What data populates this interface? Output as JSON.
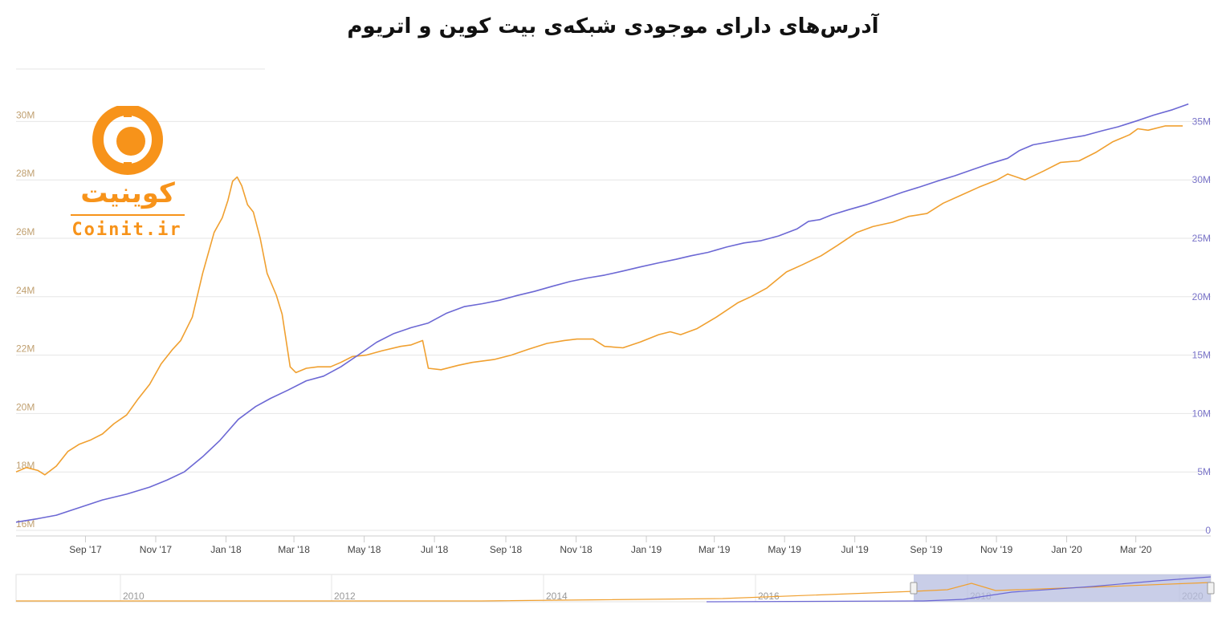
{
  "title": "آدرس‌های دارای موجودی شبکه‌ی بیت کوین و اتریوم",
  "logo": {
    "text_en": "Coinit.ir",
    "text_fa": "کوینیت",
    "color": "#f7931a"
  },
  "colors": {
    "bitcoin": "#f0a030",
    "ethereum": "#6c68d4",
    "grid": "#e6e6e6",
    "navigator_mask": "#b7bde0"
  },
  "chart_data": {
    "type": "line",
    "title": "آدرس‌های دارای موجودی شبکه‌ی بیت کوین و اتریوم",
    "x_ticks": [
      "Sep '17",
      "Nov '17",
      "Jan '18",
      "Mar '18",
      "May '18",
      "Jul '18",
      "Sep '18",
      "Nov '18",
      "Jan '19",
      "Mar '19",
      "May '19",
      "Jul '19",
      "Sep '19",
      "Nov '19",
      "Jan '20",
      "Mar '20"
    ],
    "x_range": [
      "2017-08-01",
      "2020-05-15"
    ],
    "y_left": {
      "ticks": [
        "16M",
        "18M",
        "20M",
        "22M",
        "24M",
        "26M",
        "28M",
        "30M"
      ],
      "range": [
        16,
        32
      ]
    },
    "y_right": {
      "ticks": [
        "0",
        "5M",
        "10M",
        "15M",
        "20M",
        "25M",
        "30M",
        "35M"
      ],
      "range": [
        0,
        40
      ]
    },
    "series": [
      {
        "axis": "left",
        "color": "#f0a030",
        "points": [
          [
            "2017-08-01",
            18.0
          ],
          [
            "2017-08-10",
            18.15
          ],
          [
            "2017-08-20",
            18.05
          ],
          [
            "2017-08-26",
            17.9
          ],
          [
            "2017-09-05",
            18.2
          ],
          [
            "2017-09-15",
            18.7
          ],
          [
            "2017-09-25",
            18.95
          ],
          [
            "2017-10-05",
            19.1
          ],
          [
            "2017-10-15",
            19.3
          ],
          [
            "2017-10-25",
            19.65
          ],
          [
            "2017-11-05",
            19.95
          ],
          [
            "2017-11-15",
            20.5
          ],
          [
            "2017-11-25",
            21.0
          ],
          [
            "2017-12-05",
            21.7
          ],
          [
            "2017-12-15",
            22.2
          ],
          [
            "2017-12-22",
            22.5
          ],
          [
            "2018-01-01",
            23.3
          ],
          [
            "2018-01-10",
            24.8
          ],
          [
            "2018-01-20",
            26.2
          ],
          [
            "2018-01-27",
            26.7
          ],
          [
            "2018-02-01",
            27.3
          ],
          [
            "2018-02-05",
            27.95
          ],
          [
            "2018-02-09",
            28.1
          ],
          [
            "2018-02-13",
            27.8
          ],
          [
            "2018-02-18",
            27.15
          ],
          [
            "2018-02-23",
            26.9
          ],
          [
            "2018-03-01",
            26.0
          ],
          [
            "2018-03-07",
            24.8
          ],
          [
            "2018-03-15",
            24.05
          ],
          [
            "2018-03-20",
            23.4
          ],
          [
            "2018-03-27",
            21.6
          ],
          [
            "2018-04-01",
            21.4
          ],
          [
            "2018-04-10",
            21.55
          ],
          [
            "2018-04-20",
            21.6
          ],
          [
            "2018-05-01",
            21.6
          ],
          [
            "2018-05-10",
            21.75
          ],
          [
            "2018-05-20",
            21.95
          ],
          [
            "2018-06-01",
            22.0
          ],
          [
            "2018-06-15",
            22.15
          ],
          [
            "2018-07-01",
            22.3
          ],
          [
            "2018-07-10",
            22.35
          ],
          [
            "2018-07-20",
            22.5
          ],
          [
            "2018-07-25",
            21.55
          ],
          [
            "2018-08-05",
            21.5
          ],
          [
            "2018-08-20",
            21.65
          ],
          [
            "2018-09-01",
            21.75
          ],
          [
            "2018-09-20",
            21.85
          ],
          [
            "2018-10-05",
            22.0
          ],
          [
            "2018-10-20",
            22.2
          ],
          [
            "2018-11-05",
            22.4
          ],
          [
            "2018-11-20",
            22.5
          ],
          [
            "2018-12-01",
            22.55
          ],
          [
            "2018-12-15",
            22.55
          ],
          [
            "2018-12-25",
            22.3
          ],
          [
            "2019-01-10",
            22.25
          ],
          [
            "2019-01-25",
            22.45
          ],
          [
            "2019-02-10",
            22.7
          ],
          [
            "2019-02-20",
            22.8
          ],
          [
            "2019-03-01",
            22.7
          ],
          [
            "2019-03-15",
            22.9
          ],
          [
            "2019-04-01",
            23.3
          ],
          [
            "2019-04-20",
            23.8
          ],
          [
            "2019-05-01",
            24.0
          ],
          [
            "2019-05-15",
            24.3
          ],
          [
            "2019-06-01",
            24.85
          ],
          [
            "2019-06-15",
            25.1
          ],
          [
            "2019-07-01",
            25.4
          ],
          [
            "2019-07-15",
            25.75
          ],
          [
            "2019-08-01",
            26.2
          ],
          [
            "2019-08-15",
            26.4
          ],
          [
            "2019-09-01",
            26.55
          ],
          [
            "2019-09-15",
            26.75
          ],
          [
            "2019-10-01",
            26.85
          ],
          [
            "2019-10-15",
            27.2
          ],
          [
            "2019-11-01",
            27.5
          ],
          [
            "2019-11-15",
            27.75
          ],
          [
            "2019-12-01",
            28.0
          ],
          [
            "2019-12-10",
            28.2
          ],
          [
            "2019-12-25",
            28.0
          ],
          [
            "2020-01-10",
            28.3
          ],
          [
            "2020-01-25",
            28.6
          ],
          [
            "2020-02-10",
            28.65
          ],
          [
            "2020-02-25",
            28.95
          ],
          [
            "2020-03-10",
            29.3
          ],
          [
            "2020-03-25",
            29.55
          ],
          [
            "2020-04-01",
            29.75
          ],
          [
            "2020-04-10",
            29.7
          ],
          [
            "2020-04-25",
            29.85
          ],
          [
            "2020-05-10",
            29.85
          ]
        ]
      },
      {
        "axis": "right",
        "color": "#6c68d4",
        "points": [
          [
            "2017-08-01",
            0.7
          ],
          [
            "2017-08-20",
            1.0
          ],
          [
            "2017-09-05",
            1.3
          ],
          [
            "2017-09-25",
            1.95
          ],
          [
            "2017-10-15",
            2.6
          ],
          [
            "2017-11-05",
            3.1
          ],
          [
            "2017-11-25",
            3.7
          ],
          [
            "2017-12-10",
            4.3
          ],
          [
            "2017-12-25",
            5.0
          ],
          [
            "2018-01-10",
            6.3
          ],
          [
            "2018-01-25",
            7.7
          ],
          [
            "2018-02-10",
            9.5
          ],
          [
            "2018-02-25",
            10.6
          ],
          [
            "2018-03-10",
            11.3
          ],
          [
            "2018-03-25",
            12.0
          ],
          [
            "2018-04-10",
            12.8
          ],
          [
            "2018-04-25",
            13.2
          ],
          [
            "2018-05-10",
            14.0
          ],
          [
            "2018-05-25",
            15.0
          ],
          [
            "2018-06-10",
            16.1
          ],
          [
            "2018-06-25",
            16.85
          ],
          [
            "2018-07-10",
            17.35
          ],
          [
            "2018-07-25",
            17.75
          ],
          [
            "2018-08-10",
            18.6
          ],
          [
            "2018-08-25",
            19.15
          ],
          [
            "2018-09-10",
            19.4
          ],
          [
            "2018-09-25",
            19.7
          ],
          [
            "2018-10-10",
            20.1
          ],
          [
            "2018-10-25",
            20.45
          ],
          [
            "2018-11-10",
            20.9
          ],
          [
            "2018-11-25",
            21.3
          ],
          [
            "2018-12-10",
            21.6
          ],
          [
            "2018-12-25",
            21.85
          ],
          [
            "2019-01-10",
            22.2
          ],
          [
            "2019-01-25",
            22.55
          ],
          [
            "2019-02-10",
            22.9
          ],
          [
            "2019-02-25",
            23.2
          ],
          [
            "2019-03-10",
            23.5
          ],
          [
            "2019-03-25",
            23.8
          ],
          [
            "2019-04-10",
            24.25
          ],
          [
            "2019-04-25",
            24.6
          ],
          [
            "2019-05-10",
            24.8
          ],
          [
            "2019-05-25",
            25.2
          ],
          [
            "2019-06-10",
            25.8
          ],
          [
            "2019-06-20",
            26.45
          ],
          [
            "2019-06-30",
            26.6
          ],
          [
            "2019-07-10",
            27.0
          ],
          [
            "2019-07-25",
            27.45
          ],
          [
            "2019-08-10",
            27.9
          ],
          [
            "2019-08-25",
            28.4
          ],
          [
            "2019-09-10",
            28.95
          ],
          [
            "2019-09-25",
            29.4
          ],
          [
            "2019-10-10",
            29.9
          ],
          [
            "2019-10-25",
            30.35
          ],
          [
            "2019-11-10",
            30.9
          ],
          [
            "2019-11-25",
            31.4
          ],
          [
            "2019-12-10",
            31.85
          ],
          [
            "2019-12-20",
            32.5
          ],
          [
            "2020-01-01",
            33.0
          ],
          [
            "2020-01-15",
            33.25
          ],
          [
            "2020-01-31",
            33.55
          ],
          [
            "2020-02-15",
            33.8
          ],
          [
            "2020-03-01",
            34.2
          ],
          [
            "2020-03-15",
            34.55
          ],
          [
            "2020-03-31",
            35.05
          ],
          [
            "2020-04-15",
            35.55
          ],
          [
            "2020-05-01",
            36.0
          ],
          [
            "2020-05-15",
            36.5
          ]
        ]
      }
    ],
    "navigator": {
      "labels": [
        "2010",
        "2012",
        "2014",
        "2016",
        "2018",
        "2020"
      ]
    }
  }
}
